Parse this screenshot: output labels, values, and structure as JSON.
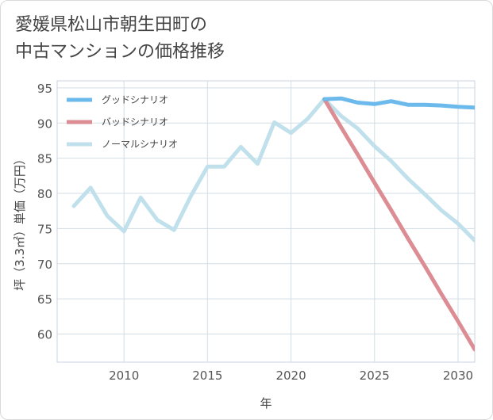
{
  "title_lines": [
    "愛媛県松山市朝生田町の",
    "中古マンションの価格推移"
  ],
  "chart_data": {
    "type": "line",
    "title": "愛媛県松山市朝生田町の中古マンションの価格推移",
    "xlabel": "年",
    "ylabel": "坪（3.3㎡）単価（万円）",
    "xlim": [
      2006,
      2031
    ],
    "ylim": [
      56,
      96
    ],
    "xticks": [
      2010,
      2015,
      2020,
      2025,
      2030
    ],
    "yticks": [
      60,
      65,
      70,
      75,
      80,
      85,
      90,
      95
    ],
    "legend_position": "top-left",
    "series": [
      {
        "name": "グッドシナリオ",
        "color": "#6cb9ec",
        "x": [
          2022,
          2023,
          2024,
          2025,
          2026,
          2027,
          2028,
          2029,
          2030,
          2031
        ],
        "values": [
          93.4,
          93.5,
          92.9,
          92.7,
          93.1,
          92.6,
          92.6,
          92.5,
          92.3,
          92.2
        ]
      },
      {
        "name": "バッドシナリオ",
        "color": "#dc8d94",
        "x": [
          2022,
          2023,
          2024,
          2025,
          2026,
          2027,
          2028,
          2029,
          2030,
          2031
        ],
        "values": [
          93.4,
          89.4,
          85.5,
          81.5,
          77.6,
          73.6,
          69.7,
          65.7,
          61.8,
          57.8
        ]
      },
      {
        "name": "ノーマルシナリオ",
        "color": "#c0e0ec",
        "x": [
          2007,
          2008,
          2009,
          2010,
          2011,
          2012,
          2013,
          2014,
          2015,
          2016,
          2017,
          2018,
          2019,
          2020,
          2021,
          2022,
          2023,
          2024,
          2025,
          2026,
          2027,
          2028,
          2029,
          2030,
          2031
        ],
        "values": [
          78.2,
          80.8,
          76.8,
          74.6,
          79.4,
          76.2,
          74.8,
          79.6,
          83.8,
          83.8,
          86.6,
          84.2,
          90.1,
          88.6,
          90.6,
          93.4,
          91.0,
          89.2,
          86.7,
          84.6,
          82.1,
          79.9,
          77.6,
          75.7,
          73.3
        ]
      }
    ]
  }
}
